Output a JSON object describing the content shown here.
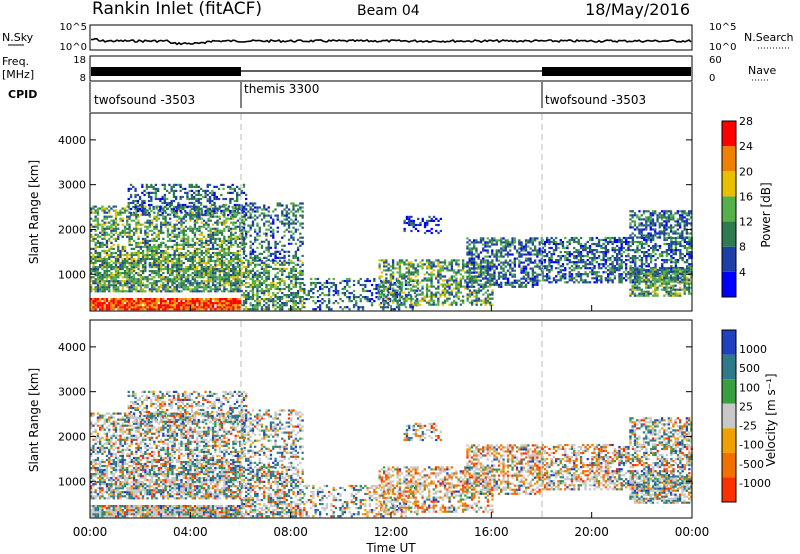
{
  "header": {
    "station": "Rankin Inlet (fitACF)",
    "beam": "Beam 04",
    "date": "18/May/2016"
  },
  "panels": {
    "nsky_label": "N.Sky",
    "freq_label": "Freq.",
    "freq_unit": "[MHz]",
    "cpid_label": "CPID",
    "nsearch_label": "N.Search",
    "nave_label": "Nave",
    "nsky_ticks": [
      "10^5",
      "10^0"
    ],
    "nsearch_ticks": [
      "10^5",
      "10^0"
    ],
    "freq_ticks": [
      "18",
      "8"
    ],
    "nave_ticks": [
      "60",
      "0"
    ],
    "cpid_segments": [
      {
        "label": "twofsound -3503",
        "start_hour": 0,
        "end_hour": 6
      },
      {
        "label": "themis 3300",
        "start_hour": 6,
        "end_hour": 18
      },
      {
        "label": "twofsound -3503",
        "start_hour": 18,
        "end_hour": 24
      }
    ]
  },
  "chart_data": [
    {
      "type": "heatmap",
      "title": "Power",
      "ylabel": "Slant Range [km]",
      "xlabel": "Time UT",
      "y_ticks": [
        1000,
        2000,
        3000,
        4000
      ],
      "ylim": [
        180,
        4600
      ],
      "x_ticks": [
        "00:00",
        "04:00",
        "08:00",
        "12:00",
        "16:00",
        "20:00",
        "00:00"
      ],
      "xlim_hours": [
        0,
        24
      ],
      "colorbar": {
        "label": "Power [dB]",
        "ticks": [
          "4",
          "8",
          "12",
          "16",
          "20",
          "24",
          "28"
        ],
        "colors": [
          "#0000ff",
          "#1e3fa8",
          "#2f7a4e",
          "#56b04a",
          "#e8c000",
          "#f08000",
          "#ff0000"
        ]
      }
    },
    {
      "type": "heatmap",
      "title": "Velocity",
      "ylabel": "Slant Range [km]",
      "xlabel": "Time UT",
      "y_ticks": [
        1000,
        2000,
        3000,
        4000
      ],
      "ylim": [
        180,
        4600
      ],
      "x_ticks": [
        "00:00",
        "04:00",
        "08:00",
        "12:00",
        "16:00",
        "20:00",
        "00:00"
      ],
      "xlim_hours": [
        0,
        24
      ],
      "colorbar": {
        "label": "Velocity [m s⁻¹]",
        "ticks": [
          "1000",
          "500",
          "100",
          "25",
          "-25",
          "-100",
          "-500",
          "-1000"
        ],
        "colors": [
          "#2040c0",
          "#2f7a8a",
          "#38a040",
          "#c8c8c8",
          "#f0a000",
          "#f07000",
          "#ff3000"
        ]
      }
    }
  ],
  "x_axis_title": "Time UT"
}
